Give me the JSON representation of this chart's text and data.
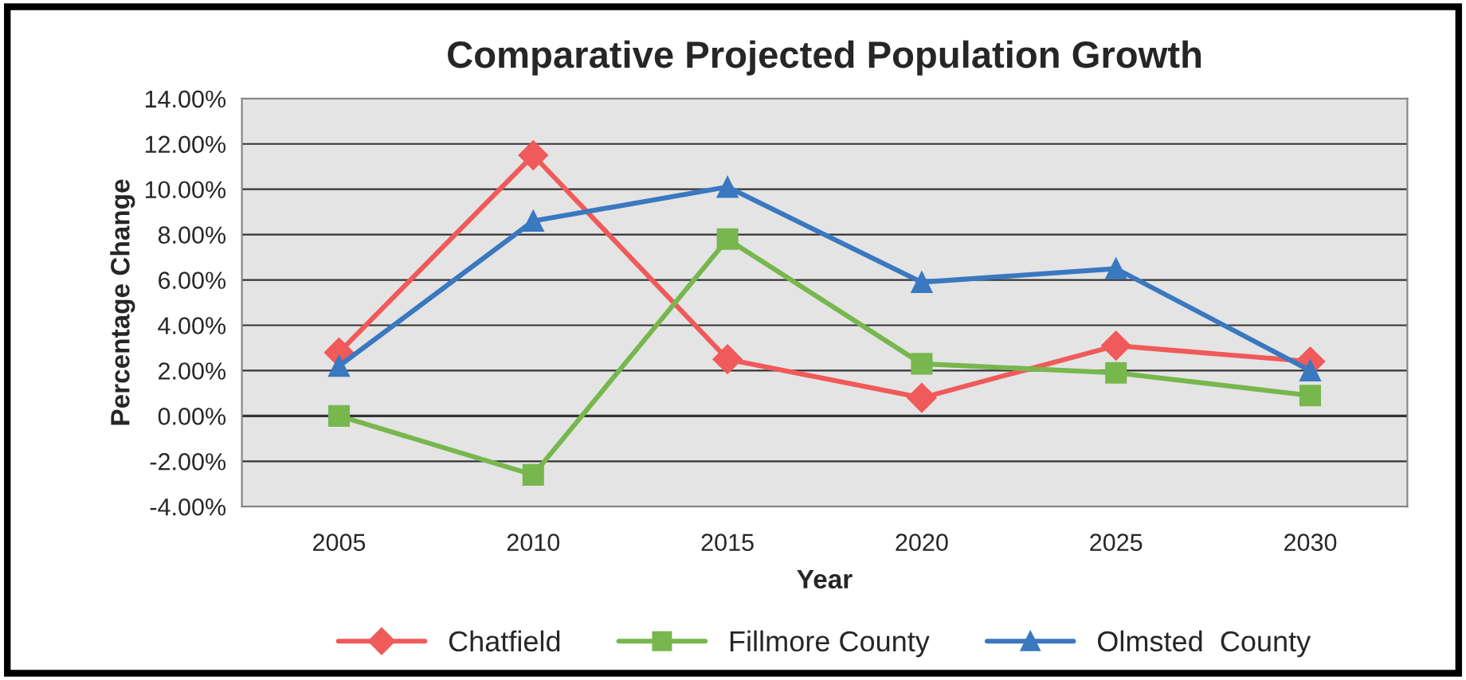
{
  "chart_data": {
    "type": "line",
    "title": "Comparative Projected Population Growth",
    "xlabel": "Year",
    "ylabel": "Percentage Change",
    "categories": [
      "2005",
      "2010",
      "2015",
      "2020",
      "2025",
      "2030"
    ],
    "series": [
      {
        "name": "Chatfield",
        "color": "#f05a5a",
        "marker": "diamond",
        "values": [
          2.8,
          11.5,
          2.5,
          0.8,
          3.1,
          2.4
        ]
      },
      {
        "name": "Fillmore County",
        "color": "#77b74e",
        "marker": "square",
        "values": [
          0.0,
          -2.6,
          7.8,
          2.3,
          1.9,
          0.9
        ]
      },
      {
        "name": "Olmsted  County",
        "color": "#3a78c0",
        "marker": "triangle",
        "values": [
          2.2,
          8.6,
          10.1,
          5.9,
          6.5,
          2.0
        ]
      }
    ],
    "ylim": [
      -4,
      14
    ],
    "yticks": [
      {
        "value": -4,
        "label": "-4.00%"
      },
      {
        "value": -2,
        "label": "-2.00%"
      },
      {
        "value": 0,
        "label": "0.00%"
      },
      {
        "value": 2,
        "label": "2.00%"
      },
      {
        "value": 4,
        "label": "4.00%"
      },
      {
        "value": 6,
        "label": "6.00%"
      },
      {
        "value": 8,
        "label": "8.00%"
      },
      {
        "value": 10,
        "label": "10.00%"
      },
      {
        "value": 12,
        "label": "12.00%"
      },
      {
        "value": 14,
        "label": "14.00%"
      }
    ],
    "grid": "y",
    "legend": "bottom",
    "line_style": "solid"
  }
}
